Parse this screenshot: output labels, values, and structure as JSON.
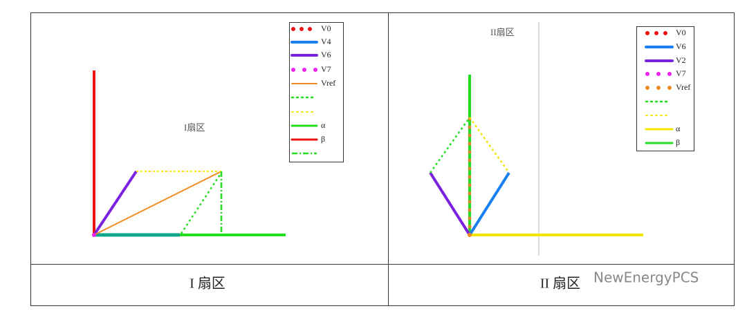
{
  "left_panel": {
    "sector_label": "I扇区",
    "legend": [
      "V0",
      "V4",
      "V6",
      "V7",
      "Vref",
      "α",
      "β"
    ],
    "caption": "I 扇区"
  },
  "right_panel": {
    "sector_label": "II扇区",
    "legend": [
      "V0",
      "V6",
      "V2",
      "V7",
      "Vref",
      "α",
      "β"
    ],
    "caption": "II 扇区"
  },
  "watermark": "NewEnergyPCS"
}
